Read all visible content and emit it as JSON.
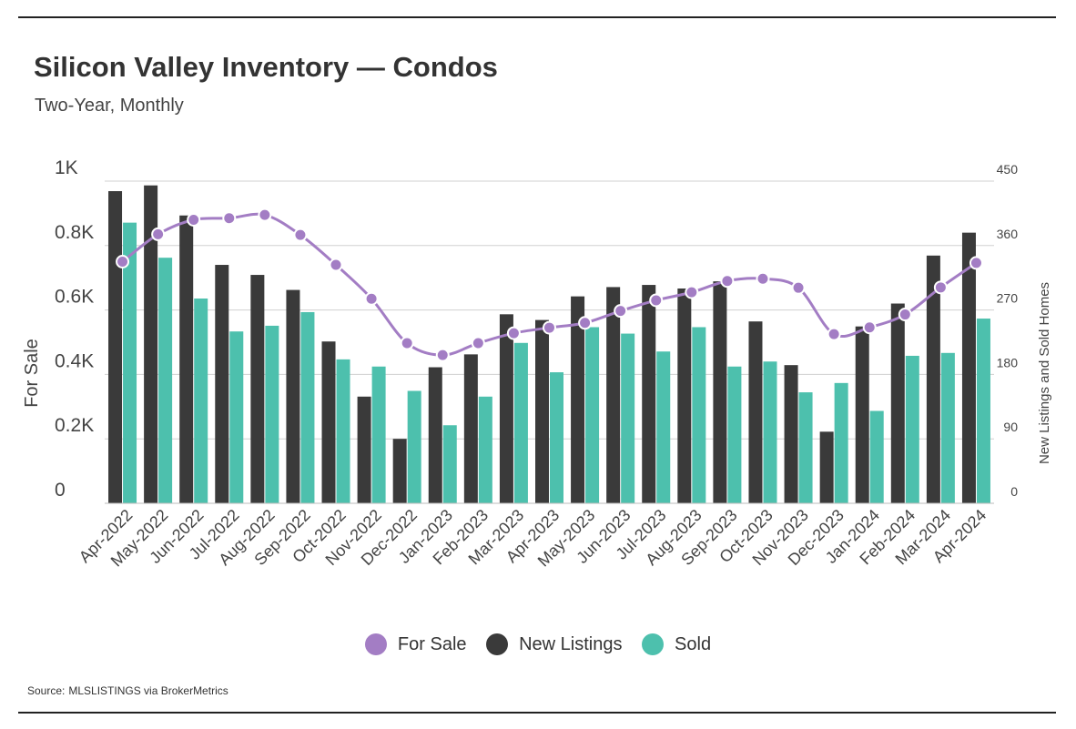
{
  "header": {
    "title": "Silicon Valley Inventory — Condos",
    "subtitle": "Two-Year, Monthly"
  },
  "footer": {
    "source_label": "Source:",
    "source_value": "MLSLISTINGS via BrokerMetrics"
  },
  "colors": {
    "for_sale": "#a37dc4",
    "new_listings": "#3a3a3a",
    "sold": "#4dc0ad",
    "grid": "#d0d0d0"
  },
  "chart_data": {
    "type": "bar",
    "title": "Silicon Valley Inventory — Condos",
    "subtitle": "Two-Year, Monthly",
    "categories": [
      "Apr-2022",
      "May-2022",
      "Jun-2022",
      "Jul-2022",
      "Aug-2022",
      "Sep-2022",
      "Oct-2022",
      "Nov-2022",
      "Dec-2022",
      "Jan-2023",
      "Feb-2023",
      "Mar-2023",
      "Apr-2023",
      "May-2023",
      "Jun-2023",
      "Jul-2023",
      "Aug-2023",
      "Sep-2023",
      "Oct-2023",
      "Nov-2023",
      "Dec-2023",
      "Jan-2024",
      "Feb-2024",
      "Mar-2024",
      "Apr-2024"
    ],
    "left_axis": {
      "label": "For Sale",
      "range": [
        0,
        1000
      ],
      "ticks": [
        0,
        200,
        400,
        600,
        800,
        1000
      ],
      "tick_labels": [
        "0",
        "0.2K",
        "0.4K",
        "0.6K",
        "0.8K",
        "1K"
      ]
    },
    "right_axis": {
      "label": "New Listings and Sold Homes",
      "range": [
        0,
        450
      ],
      "ticks": [
        0,
        90,
        180,
        270,
        360,
        450
      ],
      "tick_labels": [
        "0",
        "90",
        "180",
        "270",
        "360",
        "450"
      ]
    },
    "series": [
      {
        "name": "For Sale",
        "type": "line",
        "axis": "left",
        "values": [
          750,
          835,
          880,
          885,
          895,
          833,
          740,
          635,
          497,
          460,
          497,
          528,
          545,
          560,
          597,
          630,
          655,
          690,
          697,
          669,
          525,
          546,
          586,
          670,
          746
        ]
      },
      {
        "name": "New Listings",
        "type": "bar",
        "axis": "right",
        "values": [
          436,
          444,
          402,
          333,
          319,
          298,
          226,
          149,
          90,
          190,
          208,
          264,
          256,
          289,
          302,
          305,
          300,
          310,
          254,
          193,
          100,
          247,
          279,
          346,
          378
        ]
      },
      {
        "name": "Sold",
        "type": "bar",
        "axis": "right",
        "values": [
          392,
          343,
          286,
          240,
          248,
          267,
          201,
          191,
          157,
          109,
          149,
          224,
          183,
          246,
          237,
          212,
          246,
          191,
          198,
          155,
          168,
          129,
          206,
          210,
          258
        ]
      }
    ],
    "grid": true,
    "legend_position": "bottom-center"
  }
}
